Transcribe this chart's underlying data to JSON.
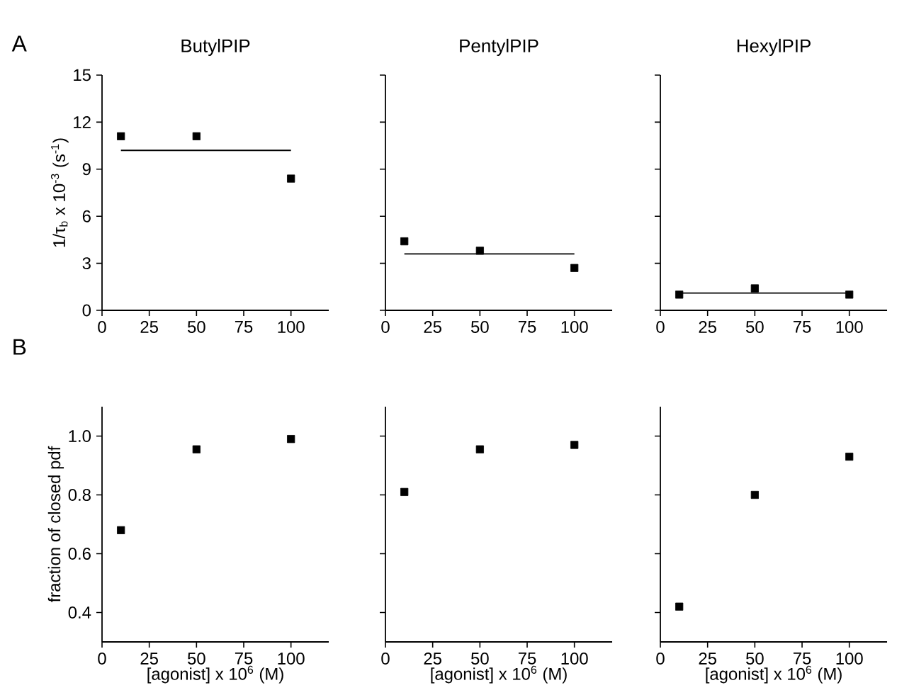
{
  "chart_data": [
    {
      "type": "scatter",
      "title": "ButylPIP",
      "ylabel": "1/τ$_{b}$ x 10$^{-3}$ (s$^{-1}$)",
      "annotations": [
        "A"
      ],
      "xlim": [
        0,
        120
      ],
      "ylim": [
        0,
        15
      ],
      "xticks": [
        0,
        25,
        50,
        75,
        100
      ],
      "yticks": [
        0,
        3,
        6,
        9,
        12,
        15
      ],
      "series": [
        {
          "type": "scatter",
          "x": [
            10,
            50,
            100
          ],
          "values": [
            11.1,
            11.1,
            8.4
          ],
          "color": "#000000",
          "marker": "square"
        },
        {
          "type": "line",
          "x": [
            10,
            100
          ],
          "values": [
            10.2,
            10.2
          ],
          "color": "#000000",
          "marker": "none"
        }
      ]
    },
    {
      "type": "scatter",
      "title": "PentylPIP",
      "xlim": [
        0,
        120
      ],
      "ylim": [
        0,
        15
      ],
      "xticks": [
        0,
        25,
        50,
        75,
        100
      ],
      "yticks": [
        0,
        3,
        6,
        9,
        12,
        15
      ],
      "tick_labels": "x",
      "series": [
        {
          "type": "scatter",
          "x": [
            10,
            50,
            100
          ],
          "values": [
            4.4,
            3.8,
            2.7
          ],
          "color": "#000000",
          "marker": "square"
        },
        {
          "type": "line",
          "x": [
            10,
            100
          ],
          "values": [
            3.6,
            3.6
          ],
          "color": "#000000",
          "marker": "none"
        }
      ]
    },
    {
      "type": "scatter",
      "title": "HexylPIP",
      "xlim": [
        0,
        120
      ],
      "ylim": [
        0,
        15
      ],
      "xticks": [
        0,
        25,
        50,
        75,
        100
      ],
      "yticks": [
        0,
        3,
        6,
        9,
        12,
        15
      ],
      "tick_labels": "x",
      "series": [
        {
          "type": "scatter",
          "x": [
            10,
            50,
            100
          ],
          "values": [
            1.0,
            1.4,
            1.0
          ],
          "color": "#000000",
          "marker": "square"
        },
        {
          "type": "line",
          "x": [
            10,
            100
          ],
          "values": [
            1.1,
            1.1
          ],
          "color": "#000000",
          "marker": "none"
        }
      ]
    },
    {
      "type": "scatter",
      "ylabel": "fraction of closed pdf",
      "xlabel": "[agonist] x 10$^{6}$ (M)",
      "annotations": [
        "B"
      ],
      "xlim": [
        0,
        120
      ],
      "ylim": [
        0.3,
        1.1
      ],
      "xticks": [
        0,
        25,
        50,
        75,
        100
      ],
      "yticks": [
        0.4,
        0.6,
        0.8,
        {
          "value": 1.0,
          "label": "1.0"
        }
      ],
      "series": [
        {
          "type": "scatter",
          "x": [
            10,
            50,
            100
          ],
          "values": [
            0.68,
            0.955,
            0.99
          ],
          "color": "#000000",
          "marker": "square"
        }
      ]
    },
    {
      "type": "scatter",
      "xlabel": "[agonist] x 10$^{6}$ (M)",
      "xlim": [
        0,
        120
      ],
      "ylim": [
        0.3,
        1.1
      ],
      "xticks": [
        0,
        25,
        50,
        75,
        100
      ],
      "yticks": [
        0.4,
        0.6,
        0.8,
        1.0
      ],
      "tick_labels": "x",
      "series": [
        {
          "type": "scatter",
          "x": [
            10,
            50,
            100
          ],
          "values": [
            0.81,
            0.955,
            0.97
          ],
          "color": "#000000",
          "marker": "square"
        }
      ]
    },
    {
      "type": "scatter",
      "xlabel": "[agonist] x 10$^{6}$ (M)",
      "xlim": [
        0,
        120
      ],
      "ylim": [
        0.3,
        1.1
      ],
      "xticks": [
        0,
        25,
        50,
        75,
        100
      ],
      "yticks": [
        0.4,
        0.6,
        0.8,
        1.0
      ],
      "tick_labels": "x",
      "series": [
        {
          "type": "scatter",
          "x": [
            10,
            50,
            100
          ],
          "values": [
            0.42,
            0.8,
            0.93
          ],
          "color": "#000000",
          "marker": "square"
        }
      ]
    }
  ]
}
